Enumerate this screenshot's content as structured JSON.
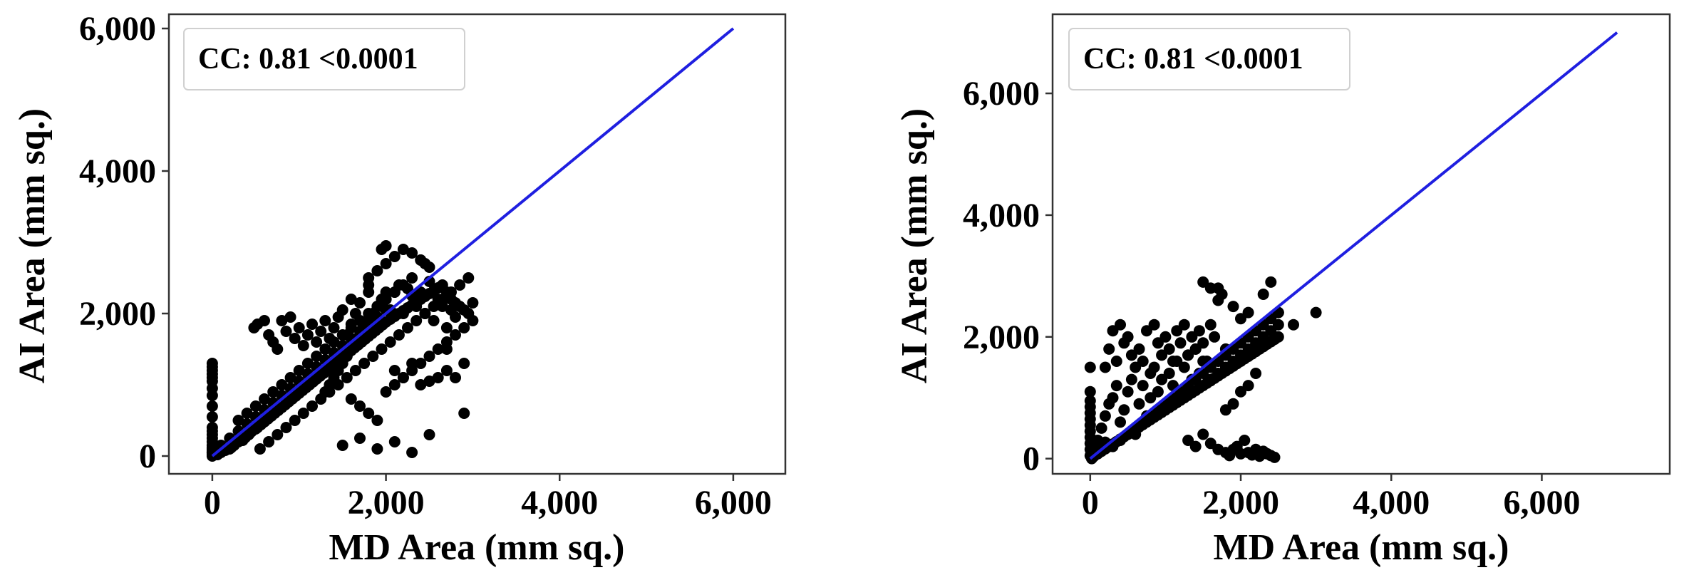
{
  "chart_data": [
    {
      "type": "scatter",
      "xlabel": "MD Area (mm sq.)",
      "ylabel": "AI Area (mm sq.)",
      "xlim": [
        -500,
        6600
      ],
      "ylim": [
        -250,
        6200
      ],
      "xticks": [
        0,
        2000,
        4000,
        6000
      ],
      "xtick_labels": [
        "0",
        "2,000",
        "4,000",
        "6,000"
      ],
      "yticks": [
        0,
        2000,
        4000,
        6000
      ],
      "ytick_labels": [
        "0",
        "2,000",
        "4,000",
        "6,000"
      ],
      "annotation": "CC: 0.81 <0.0001",
      "annotation_position": "top-left",
      "grid": false,
      "point_color": "#000000",
      "line_color": "#1f1fe0",
      "fit_line": {
        "x": [
          0,
          6000
        ],
        "y": [
          0,
          6000
        ]
      },
      "series": [
        {
          "x": [
            0,
            0,
            0,
            0,
            0,
            0,
            0,
            0,
            0,
            0,
            0,
            0,
            0,
            0,
            0,
            0,
            0,
            0,
            0,
            0,
            0,
            0,
            0,
            0,
            60,
            100,
            150,
            200,
            220,
            250,
            300,
            350,
            380,
            420,
            450,
            500,
            520,
            560,
            600,
            640,
            680,
            720,
            760,
            800,
            840,
            880,
            920,
            960,
            1000,
            1040,
            1080,
            1120,
            1160,
            1200,
            1240,
            1280,
            1320,
            1360,
            1400,
            1440,
            1480,
            1520,
            1560,
            1600,
            1640,
            1680,
            1720,
            1760,
            1800,
            1840,
            1880,
            1920,
            1960,
            2000,
            2050,
            2100,
            2150,
            2200,
            2250,
            2300,
            2350,
            2400,
            2450,
            2500,
            2550,
            2600,
            2650,
            2700,
            2750,
            2800,
            2850,
            2900,
            2950,
            3000,
            480,
            520,
            600,
            650,
            700,
            750,
            800,
            850,
            900,
            950,
            1000,
            1050,
            1100,
            1150,
            1200,
            1250,
            1300,
            1350,
            1400,
            1450,
            1500,
            1550,
            1600,
            1650,
            1700,
            1750,
            1800,
            1850,
            1900,
            1950,
            2000,
            2050,
            2100,
            2150,
            2200,
            2250,
            2300,
            2350,
            2400,
            2450,
            2500,
            2550,
            2600,
            2650,
            2700,
            2750,
            2800,
            550,
            650,
            750,
            850,
            950,
            1050,
            1150,
            1250,
            1350,
            1450,
            1550,
            1650,
            1750,
            1850,
            1950,
            2050,
            2150,
            2250,
            2350,
            2450,
            2550,
            2650,
            2750,
            2850,
            2950,
            300,
            400,
            500,
            600,
            700,
            800,
            900,
            1000,
            1100,
            1200,
            1300,
            1400,
            1500,
            1600,
            1700,
            1800,
            1900,
            2000,
            2100,
            2200,
            2300,
            100,
            200,
            300,
            400,
            500,
            600,
            700,
            800,
            900,
            1000,
            1100,
            1200,
            1300,
            1400,
            1500,
            1600,
            1700,
            1800,
            1900,
            2000,
            1300,
            1350,
            1400,
            1450,
            1500,
            1550,
            1600,
            1650,
            1700,
            1750,
            1800,
            1850,
            1900,
            1950,
            2000,
            2100,
            2200,
            2300,
            2400,
            2500,
            2600,
            2700,
            2800,
            2900,
            1600,
            1700,
            1800,
            1900,
            2000,
            2100,
            2200,
            2300,
            2400,
            2500,
            2600,
            2700,
            2800,
            2900,
            3000,
            1800,
            1900,
            2000,
            2100,
            2200,
            2300,
            2400,
            2500,
            1500,
            1700,
            1900,
            2100,
            2300,
            2500,
            2700,
            1600,
            1800,
            1950,
            2000,
            2400,
            2450,
            2900
          ],
          "y": [
            50,
            120,
            200,
            300,
            400,
            550,
            700,
            850,
            950,
            1050,
            1100,
            1150,
            1200,
            1250,
            1300,
            0,
            20,
            40,
            60,
            80,
            100,
            150,
            250,
            350,
            20,
            50,
            80,
            100,
            120,
            150,
            200,
            220,
            260,
            300,
            340,
            380,
            400,
            440,
            480,
            520,
            560,
            600,
            640,
            680,
            720,
            760,
            800,
            840,
            880,
            920,
            960,
            1000,
            1040,
            1080,
            1120,
            1160,
            1200,
            1240,
            1280,
            1320,
            1360,
            1400,
            1440,
            1480,
            1520,
            1560,
            1600,
            1640,
            1680,
            1720,
            1760,
            1800,
            1840,
            1880,
            1920,
            1960,
            2000,
            2040,
            2080,
            2120,
            2160,
            2200,
            2240,
            2280,
            2320,
            2360,
            2400,
            2300,
            2200,
            2150,
            2100,
            2050,
            2000,
            2150,
            1800,
            1850,
            1900,
            1700,
            1600,
            1500,
            1900,
            1750,
            1950,
            1650,
            1800,
            1550,
            1700,
            1850,
            1600,
            1750,
            1900,
            1650,
            1800,
            1950,
            2050,
            1700,
            1850,
            2000,
            2150,
            1800,
            2300,
            2000,
            1900,
            2100,
            2200,
            2050,
            2300,
            2400,
            2000,
            2350,
            2250,
            2100,
            2300,
            2000,
            2450,
            1900,
            2200,
            2100,
            1800,
            2050,
            1950,
            100,
            200,
            300,
            400,
            500,
            600,
            700,
            800,
            900,
            1000,
            1100,
            1200,
            1300,
            1400,
            1500,
            1600,
            1700,
            1800,
            1900,
            2000,
            2100,
            2200,
            2300,
            2400,
            2500,
            500,
            600,
            700,
            800,
            900,
            1000,
            1100,
            1200,
            1300,
            1400,
            1500,
            1600,
            1700,
            1800,
            1900,
            2000,
            2100,
            2200,
            2300,
            2400,
            2500,
            150,
            250,
            350,
            450,
            550,
            650,
            750,
            850,
            950,
            1050,
            1150,
            1250,
            1350,
            1450,
            1550,
            1650,
            1750,
            1850,
            1950,
            2050,
            900,
            1000,
            1100,
            1200,
            1300,
            1400,
            1500,
            1600,
            1700,
            1800,
            1900,
            2000,
            2100,
            2200,
            2300,
            1200,
            1100,
            1300,
            1000,
            1050,
            1100,
            1200,
            1100,
            1300,
            800,
            700,
            600,
            500,
            900,
            1000,
            1100,
            1200,
            1300,
            1400,
            1500,
            1600,
            1700,
            1800,
            1900,
            2500,
            2600,
            2700,
            2800,
            2900,
            2850,
            2750,
            2650,
            150,
            250,
            100,
            200,
            50,
            300,
            1500,
            2200,
            2400,
            2900,
            2950,
            2750,
            2700,
            600
          ]
        }
      ]
    },
    {
      "type": "scatter",
      "xlabel": "MD  Area (mm sq.)",
      "ylabel": "AI Area (mm sq.)",
      "xlim": [
        -500,
        7700
      ],
      "ylim": [
        -250,
        7300
      ],
      "xticks": [
        0,
        2000,
        4000,
        6000
      ],
      "xtick_labels": [
        "0",
        "2,000",
        "4,000",
        "6,000"
      ],
      "yticks": [
        0,
        2000,
        4000,
        6000
      ],
      "ytick_labels": [
        "0",
        "2,000",
        "4,000",
        "6,000"
      ],
      "annotation": "CC: 0.81 <0.0001",
      "annotation_position": "top-left",
      "grid": false,
      "point_color": "#000000",
      "line_color": "#1f1fe0",
      "fit_line": {
        "x": [
          0,
          7000
        ],
        "y": [
          0,
          7000
        ]
      },
      "series": [
        {
          "x": [
            0,
            0,
            0,
            0,
            0,
            0,
            0,
            0,
            0,
            0,
            0,
            0,
            20,
            40,
            60,
            80,
            100,
            120,
            140,
            160,
            180,
            200,
            50,
            100,
            150,
            200,
            250,
            300,
            350,
            400,
            450,
            500,
            550,
            600,
            650,
            700,
            750,
            800,
            850,
            900,
            950,
            1000,
            1050,
            1100,
            1150,
            1200,
            1250,
            1300,
            1350,
            1400,
            1450,
            1500,
            1550,
            1600,
            1650,
            1700,
            1750,
            1800,
            1850,
            1900,
            1950,
            2000,
            2050,
            2100,
            2150,
            2200,
            2250,
            2300,
            2350,
            2400,
            2450,
            2500,
            200,
            250,
            300,
            350,
            400,
            450,
            500,
            550,
            600,
            650,
            700,
            750,
            800,
            850,
            900,
            950,
            1000,
            1050,
            1100,
            1150,
            1200,
            1250,
            1300,
            1350,
            1400,
            1450,
            1500,
            1550,
            1600,
            1650,
            1700,
            1750,
            1800,
            100,
            150,
            200,
            250,
            300,
            350,
            400,
            450,
            500,
            550,
            600,
            650,
            700,
            750,
            800,
            850,
            900,
            950,
            1000,
            1050,
            1100,
            1150,
            1200,
            1250,
            1300,
            1350,
            1400,
            1450,
            1500,
            300,
            400,
            500,
            600,
            700,
            800,
            900,
            1000,
            1100,
            1200,
            1300,
            1400,
            1500,
            1600,
            1700,
            1800,
            1900,
            2000,
            2100,
            2200,
            2300,
            2400,
            2500,
            1600,
            1700,
            1800,
            1900,
            2000,
            2100,
            2200,
            2300,
            2400,
            2500,
            1800,
            1850,
            1900,
            1950,
            2000,
            2050,
            2100,
            2150,
            2200,
            2250,
            2300,
            2350,
            2400,
            2450,
            1300,
            1400,
            1500,
            1600,
            1700,
            1800,
            1900,
            2000,
            2100,
            2200,
            1500,
            1600,
            1700,
            1900,
            2000,
            2100,
            2300,
            2400,
            2500,
            2700,
            3000
          ],
          "y": [
            50,
            150,
            250,
            350,
            450,
            550,
            650,
            750,
            850,
            950,
            1100,
            1500,
            0,
            30,
            60,
            90,
            120,
            150,
            180,
            210,
            240,
            270,
            40,
            80,
            120,
            160,
            200,
            240,
            280,
            320,
            360,
            400,
            440,
            480,
            520,
            560,
            600,
            640,
            680,
            720,
            760,
            800,
            840,
            880,
            920,
            960,
            1000,
            1040,
            1080,
            1120,
            1160,
            1200,
            1240,
            1280,
            1320,
            1360,
            1400,
            1440,
            1480,
            1520,
            1560,
            1600,
            1640,
            1680,
            1720,
            1760,
            1800,
            1840,
            1880,
            1920,
            1960,
            2000,
            1500,
            1800,
            2100,
            1600,
            2200,
            1900,
            2000,
            1700,
            1500,
            1800,
            1600,
            2100,
            1400,
            2200,
            1900,
            1700,
            2000,
            1800,
            1600,
            2100,
            1900,
            2200,
            1700,
            2000,
            1800,
            2100,
            1900,
            1600,
            2200,
            2000,
            2800,
            2700,
            1800,
            300,
            500,
            700,
            900,
            1000,
            1200,
            600,
            800,
            1100,
            1300,
            400,
            900,
            1200,
            700,
            1000,
            1500,
            1100,
            1300,
            900,
            1400,
            1200,
            1600,
            1000,
            1500,
            1700,
            1300,
            1800,
            1400,
            1600,
            200,
            300,
            400,
            500,
            600,
            700,
            800,
            900,
            1000,
            1100,
            1200,
            1300,
            1400,
            1500,
            1600,
            1700,
            1800,
            1900,
            2000,
            2100,
            2200,
            2300,
            2400,
            1300,
            1400,
            1500,
            1600,
            1700,
            1800,
            1900,
            2000,
            2100,
            2200,
            100,
            50,
            150,
            200,
            80,
            300,
            100,
            60,
            150,
            40,
            120,
            80,
            50,
            20,
            300,
            200,
            400,
            250,
            150,
            800,
            900,
            1100,
            1200,
            1400,
            2900,
            2800,
            2600,
            2500,
            2300,
            2400,
            2700,
            2900,
            2400,
            2200,
            2400
          ]
        }
      ]
    }
  ]
}
